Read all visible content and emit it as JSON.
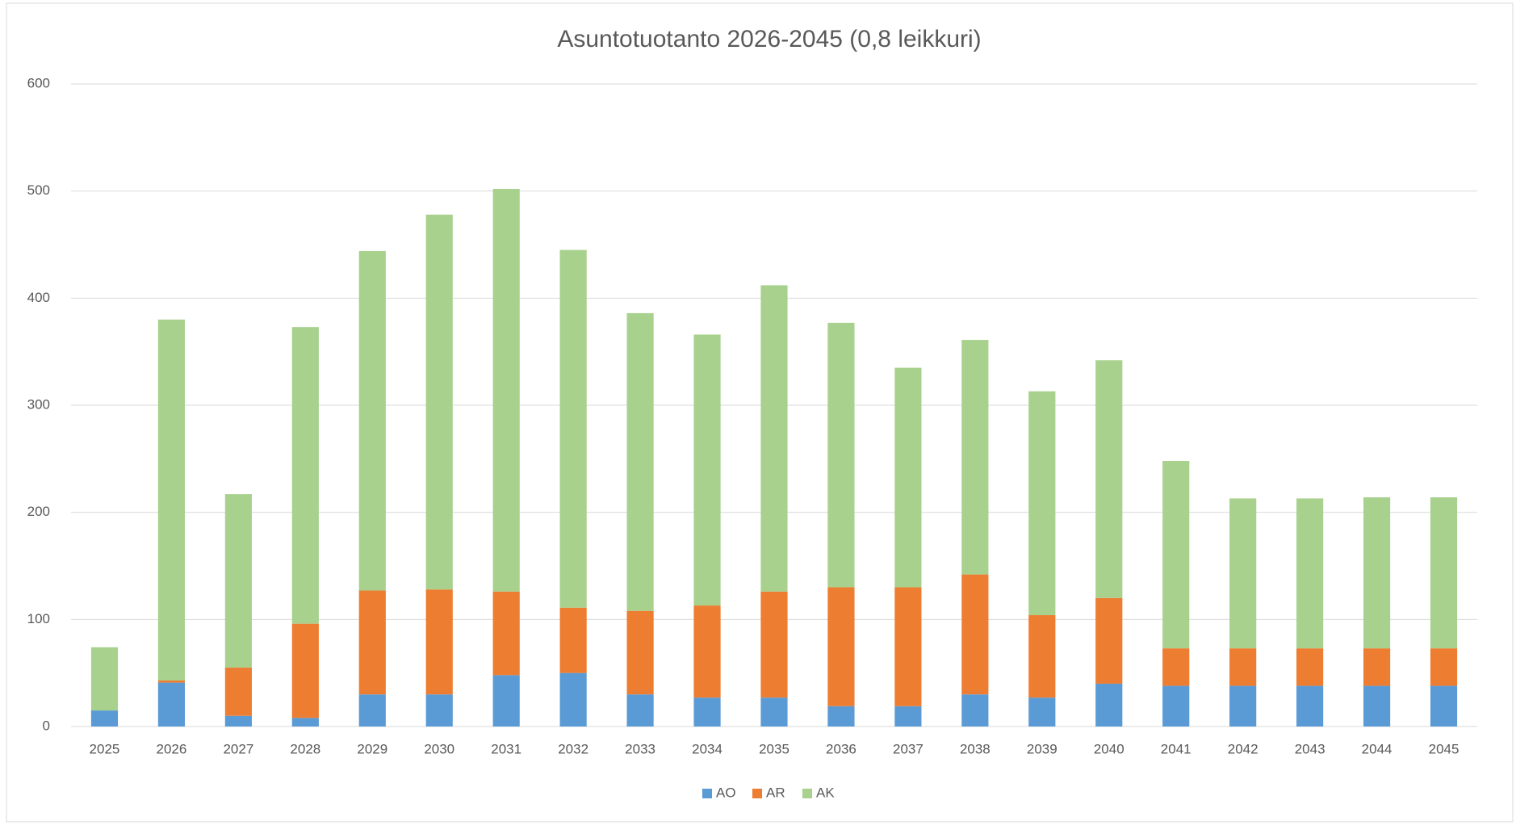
{
  "chart_data": {
    "type": "stacked_bar",
    "title": "Asuntotuotanto 2026-2045 (0,8 leikkuri)",
    "categories": [
      "2025",
      "2026",
      "2027",
      "2028",
      "2029",
      "2030",
      "2031",
      "2032",
      "2033",
      "2034",
      "2035",
      "2036",
      "2037",
      "2038",
      "2039",
      "2040",
      "2041",
      "2042",
      "2043",
      "2044",
      "2045"
    ],
    "series": [
      {
        "name": "AO",
        "color": "#5b9bd5",
        "values": [
          15,
          41,
          10,
          8,
          30,
          30,
          48,
          50,
          30,
          27,
          27,
          19,
          19,
          30,
          27,
          40,
          38,
          38,
          38,
          38,
          38
        ]
      },
      {
        "name": "AR",
        "color": "#ed7d31",
        "values": [
          0,
          2,
          45,
          88,
          97,
          98,
          78,
          61,
          78,
          86,
          99,
          111,
          111,
          112,
          77,
          80,
          35,
          35,
          35,
          35,
          35
        ]
      },
      {
        "name": "AK",
        "color": "#a9d18e",
        "values": [
          59,
          337,
          162,
          277,
          317,
          350,
          376,
          334,
          278,
          253,
          286,
          247,
          205,
          219,
          209,
          222,
          175,
          140,
          140,
          141,
          141
        ]
      }
    ],
    "ylim": [
      0,
      600
    ],
    "yticks": [
      0,
      100,
      200,
      300,
      400,
      500,
      600
    ],
    "grid": true,
    "legend": "bottom"
  }
}
